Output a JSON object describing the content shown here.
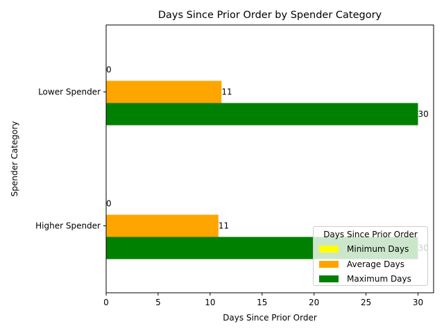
{
  "chart_data": {
    "type": "bar",
    "orientation": "horizontal",
    "title": "Days Since Prior Order by Spender Category",
    "xlabel": "Days Since Prior Order",
    "ylabel": "Spender Category",
    "categories": [
      "Higher Spender",
      "Lower Spender"
    ],
    "xlim": [
      0,
      31.5
    ],
    "xticks": [
      0,
      5,
      10,
      15,
      20,
      25,
      30
    ],
    "xtick_labels": [
      "0",
      "5",
      "10",
      "15",
      "20",
      "25",
      "30"
    ],
    "legend": {
      "title": "Days Since Prior Order",
      "placement": "lower-right"
    },
    "series": [
      {
        "name": "Minimum Days",
        "color": "#ffff00",
        "values": [
          0,
          0
        ],
        "labels": [
          "0",
          "0"
        ]
      },
      {
        "name": "Average Days",
        "color": "#ffa500",
        "values": [
          10.8,
          11.1
        ],
        "labels": [
          "11",
          "11"
        ]
      },
      {
        "name": "Maximum Days",
        "color": "#008000",
        "values": [
          30,
          30
        ],
        "labels": [
          "30",
          "30"
        ]
      }
    ]
  }
}
